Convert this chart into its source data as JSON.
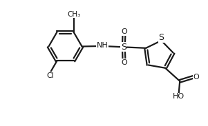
{
  "bg_color": "#ffffff",
  "line_color": "#1a1a1a",
  "line_width": 1.6,
  "font_size_atom": 8.0,
  "fig_width": 3.01,
  "fig_height": 1.83,
  "dpi": 100,
  "xlim": [
    0.0,
    10.2
  ],
  "ylim": [
    0.5,
    6.5
  ]
}
